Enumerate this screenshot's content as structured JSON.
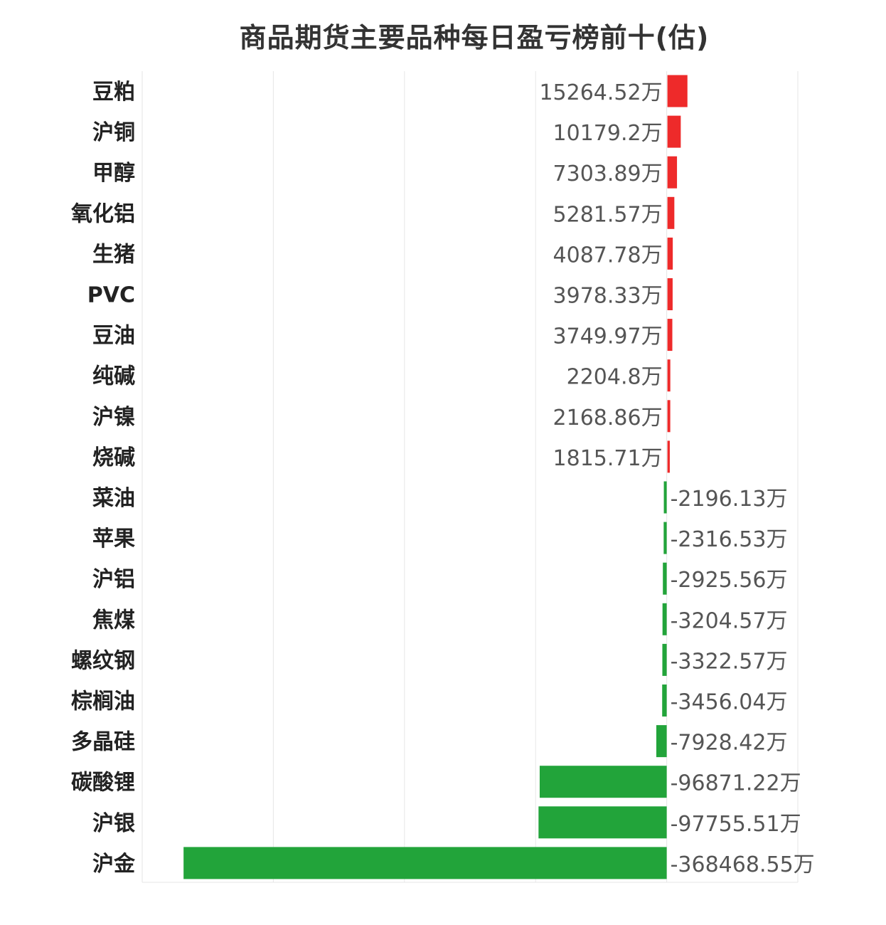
{
  "chart_data": {
    "type": "bar",
    "orientation": "horizontal",
    "title": "商品期货主要品种每日盈亏榜前十(估)",
    "unit_suffix": "万",
    "categories": [
      "豆粕",
      "沪铜",
      "甲醇",
      "氧化铝",
      "生猪",
      "PVC",
      "豆油",
      "纯碱",
      "沪镍",
      "烧碱",
      "菜油",
      "苹果",
      "沪铝",
      "焦煤",
      "螺纹钢",
      "棕榈油",
      "多晶硅",
      "碳酸锂",
      "沪银",
      "沪金"
    ],
    "values": [
      15264.52,
      10179.2,
      7303.89,
      5281.57,
      4087.78,
      3978.33,
      3749.97,
      2204.8,
      2168.86,
      1815.71,
      -2196.13,
      -2316.53,
      -2925.56,
      -3204.57,
      -3322.57,
      -3456.04,
      -7928.42,
      -96871.22,
      -97755.51,
      -368468.55
    ],
    "value_labels": [
      "15264.52万",
      "10179.2万",
      "7303.89万",
      "5281.57万",
      "4087.78万",
      "3978.33万",
      "3749.97万",
      "2204.8万",
      "2168.86万",
      "1815.71万",
      "-2196.13万",
      "-2316.53万",
      "-2925.56万",
      "-3204.57万",
      "-3322.57万",
      "-3456.04万",
      "-7928.42万",
      "-96871.22万",
      "-97755.51万",
      "-368468.55万"
    ],
    "xlim": [
      -400000,
      100000
    ],
    "grid_x": [
      -400000,
      -300000,
      -200000,
      -100000,
      0,
      100000
    ],
    "colors": {
      "positive": "#ee2a2a",
      "negative": "#22a43a",
      "grid": "#e6e6e6"
    },
    "grid": true,
    "legend": "none"
  }
}
